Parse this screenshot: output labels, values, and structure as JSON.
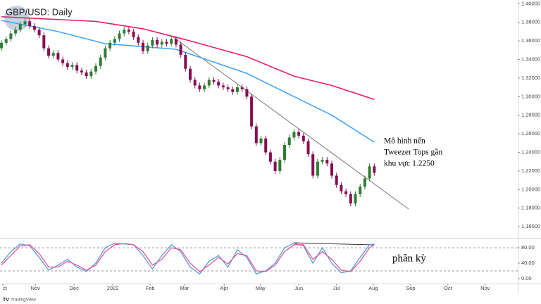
{
  "chart_data": [
    {
      "type": "candlestick",
      "title": "GBP/USD: Daily",
      "annotations": [
        "Mô hình nến",
        "Tweezer Tops gần",
        "khu vực 1.2250"
      ],
      "up_color": "#2e7d32",
      "down_color": "#880e4f",
      "open": [
        1.352,
        1.358,
        1.362,
        1.368,
        1.372,
        1.378,
        1.381,
        1.376,
        1.372,
        1.366,
        1.352,
        1.344,
        1.347,
        1.34,
        1.336,
        1.332,
        1.334,
        1.328,
        1.326,
        1.322,
        1.327,
        1.333,
        1.342,
        1.352,
        1.358,
        1.362,
        1.368,
        1.372,
        1.37,
        1.364,
        1.358,
        1.349,
        1.355,
        1.361,
        1.356,
        1.359,
        1.357,
        1.362,
        1.356,
        1.345,
        1.33,
        1.318,
        1.312,
        1.308,
        1.312,
        1.318,
        1.316,
        1.312,
        1.31,
        1.308,
        1.305,
        1.31,
        1.308,
        1.3,
        1.268,
        1.25,
        1.255,
        1.24,
        1.23,
        1.22,
        1.232,
        1.248,
        1.256,
        1.262,
        1.258,
        1.252,
        1.238,
        1.215,
        1.23,
        1.232,
        1.228,
        1.215,
        1.205,
        1.198,
        1.195,
        1.185,
        1.195,
        1.203,
        1.212,
        1.225
      ],
      "high": [
        1.361,
        1.365,
        1.371,
        1.375,
        1.381,
        1.384,
        1.384,
        1.379,
        1.375,
        1.369,
        1.355,
        1.35,
        1.35,
        1.343,
        1.339,
        1.337,
        1.337,
        1.331,
        1.329,
        1.33,
        1.336,
        1.345,
        1.355,
        1.361,
        1.365,
        1.371,
        1.375,
        1.375,
        1.373,
        1.367,
        1.361,
        1.358,
        1.364,
        1.364,
        1.362,
        1.362,
        1.365,
        1.365,
        1.359,
        1.348,
        1.333,
        1.321,
        1.315,
        1.315,
        1.321,
        1.321,
        1.319,
        1.315,
        1.313,
        1.311,
        1.313,
        1.313,
        1.311,
        1.303,
        1.271,
        1.258,
        1.258,
        1.243,
        1.233,
        1.235,
        1.251,
        1.259,
        1.265,
        1.265,
        1.261,
        1.255,
        1.241,
        1.233,
        1.235,
        1.235,
        1.231,
        1.218,
        1.208,
        1.201,
        1.198,
        1.198,
        1.206,
        1.215,
        1.228,
        1.228
      ],
      "low": [
        1.349,
        1.355,
        1.359,
        1.365,
        1.369,
        1.375,
        1.373,
        1.369,
        1.363,
        1.349,
        1.341,
        1.341,
        1.337,
        1.333,
        1.329,
        1.329,
        1.325,
        1.323,
        1.319,
        1.319,
        1.324,
        1.33,
        1.339,
        1.349,
        1.355,
        1.359,
        1.365,
        1.367,
        1.361,
        1.355,
        1.346,
        1.346,
        1.352,
        1.353,
        1.353,
        1.354,
        1.354,
        1.353,
        1.342,
        1.327,
        1.315,
        1.309,
        1.305,
        1.305,
        1.309,
        1.313,
        1.309,
        1.307,
        1.305,
        1.302,
        1.302,
        1.305,
        1.297,
        1.265,
        1.247,
        1.247,
        1.237,
        1.227,
        1.217,
        1.217,
        1.229,
        1.245,
        1.253,
        1.255,
        1.249,
        1.235,
        1.212,
        1.212,
        1.227,
        1.225,
        1.212,
        1.202,
        1.195,
        1.192,
        1.182,
        1.182,
        1.192,
        1.2,
        1.209,
        1.215
      ],
      "close": [
        1.358,
        1.362,
        1.368,
        1.372,
        1.378,
        1.381,
        1.376,
        1.372,
        1.366,
        1.352,
        1.344,
        1.347,
        1.34,
        1.336,
        1.332,
        1.334,
        1.328,
        1.326,
        1.322,
        1.327,
        1.333,
        1.342,
        1.352,
        1.358,
        1.362,
        1.368,
        1.372,
        1.37,
        1.364,
        1.358,
        1.349,
        1.355,
        1.361,
        1.356,
        1.359,
        1.357,
        1.362,
        1.356,
        1.345,
        1.33,
        1.318,
        1.312,
        1.308,
        1.312,
        1.318,
        1.316,
        1.312,
        1.31,
        1.308,
        1.305,
        1.31,
        1.308,
        1.3,
        1.268,
        1.25,
        1.255,
        1.24,
        1.23,
        1.22,
        1.232,
        1.248,
        1.256,
        1.262,
        1.258,
        1.252,
        1.238,
        1.215,
        1.23,
        1.232,
        1.228,
        1.215,
        1.205,
        1.198,
        1.195,
        1.185,
        1.195,
        1.203,
        1.212,
        1.225,
        1.218
      ],
      "series": [
        {
          "color": "#e91e63",
          "x": [
            0,
            20,
            30,
            40,
            52,
            62,
            70,
            79
          ],
          "values": [
            1.386,
            1.381,
            1.373,
            1.36,
            1.343,
            1.322,
            1.312,
            1.297
          ]
        },
        {
          "color": "#42a5f5",
          "x": [
            0,
            12,
            22,
            37,
            52,
            62,
            70,
            79
          ],
          "values": [
            1.382,
            1.37,
            1.357,
            1.351,
            1.325,
            1.3,
            1.28,
            1.251
          ]
        }
      ],
      "xlim": [
        -0.3,
        109.4
      ],
      "xticks": [
        {
          "value": 0.3,
          "label": "ct"
        },
        {
          "value": 7.2,
          "label": "Nov"
        },
        {
          "value": 15.4,
          "label": "Dec"
        },
        {
          "value": 23.6,
          "label": "2022"
        },
        {
          "value": 31.5,
          "label": "Feb"
        },
        {
          "value": 38.8,
          "label": "Mar"
        },
        {
          "value": 47.2,
          "label": "Apr"
        },
        {
          "value": 54.9,
          "label": "May"
        },
        {
          "value": 63.0,
          "label": "Jun"
        },
        {
          "value": 71.0,
          "label": "Jul"
        },
        {
          "value": 78.8,
          "label": "Aug"
        },
        {
          "value": 86.7,
          "label": "Sep"
        },
        {
          "value": 94.6,
          "label": "Oct"
        },
        {
          "value": 102.5,
          "label": "Nov"
        }
      ],
      "ylim": [
        1.148,
        1.404
      ],
      "yticks": [
        {
          "value": 1.16,
          "label": "1.16000"
        },
        {
          "value": 1.18,
          "label": "1.18000"
        },
        {
          "value": 1.2,
          "label": "1.20000"
        },
        {
          "value": 1.22,
          "label": "1.22000"
        },
        {
          "value": 1.24,
          "label": "1.24000"
        },
        {
          "value": 1.26,
          "label": "1.26000"
        },
        {
          "value": 1.28,
          "label": "1.28000"
        },
        {
          "value": 1.3,
          "label": "1.30000"
        },
        {
          "value": 1.32,
          "label": "1.32000"
        },
        {
          "value": 1.34,
          "label": "1.34000"
        },
        {
          "value": 1.36,
          "label": "1.36000"
        },
        {
          "value": 1.38,
          "label": "1.38000"
        },
        {
          "value": 1.4,
          "label": "1.40000"
        }
      ]
    },
    {
      "type": "line",
      "annotations": [
        "phân kỳ"
      ],
      "series": [
        {
          "color": "#5b9bd5",
          "x": [
            0,
            2,
            4,
            6,
            8,
            10,
            12,
            14,
            16,
            18,
            20,
            22,
            24,
            26,
            28,
            30,
            32,
            34,
            36,
            38,
            40,
            42,
            44,
            46,
            48,
            50,
            52,
            54,
            56,
            58,
            60,
            62,
            64,
            66,
            68,
            70,
            72,
            74,
            76,
            78,
            79
          ],
          "values": [
            40,
            70,
            90,
            85,
            55,
            22,
            35,
            50,
            30,
            18,
            40,
            80,
            92,
            90,
            88,
            60,
            25,
            60,
            88,
            70,
            30,
            12,
            45,
            60,
            30,
            75,
            55,
            12,
            20,
            40,
            80,
            92,
            85,
            40,
            80,
            40,
            15,
            20,
            55,
            88,
            90
          ]
        },
        {
          "color": "#e05a9c",
          "x": [
            0,
            2,
            4,
            6,
            8,
            10,
            12,
            14,
            16,
            18,
            20,
            22,
            24,
            26,
            28,
            30,
            32,
            34,
            36,
            38,
            40,
            42,
            44,
            46,
            48,
            50,
            52,
            54,
            56,
            58,
            60,
            62,
            64,
            66,
            68,
            70,
            72,
            74,
            76,
            78,
            79
          ],
          "values": [
            35,
            60,
            85,
            88,
            65,
            30,
            30,
            45,
            35,
            22,
            35,
            70,
            88,
            91,
            88,
            70,
            35,
            50,
            80,
            75,
            40,
            18,
            35,
            55,
            38,
            65,
            60,
            20,
            18,
            35,
            70,
            88,
            88,
            50,
            70,
            50,
            22,
            18,
            45,
            80,
            88
          ]
        }
      ],
      "levels": [
        80,
        20
      ],
      "ylim": [
        -13,
        104
      ],
      "yticks": [
        {
          "value": 0,
          "label": "0.00"
        },
        {
          "value": 40,
          "label": "40.00"
        },
        {
          "value": 80,
          "label": "80.00"
        }
      ]
    }
  ]
}
